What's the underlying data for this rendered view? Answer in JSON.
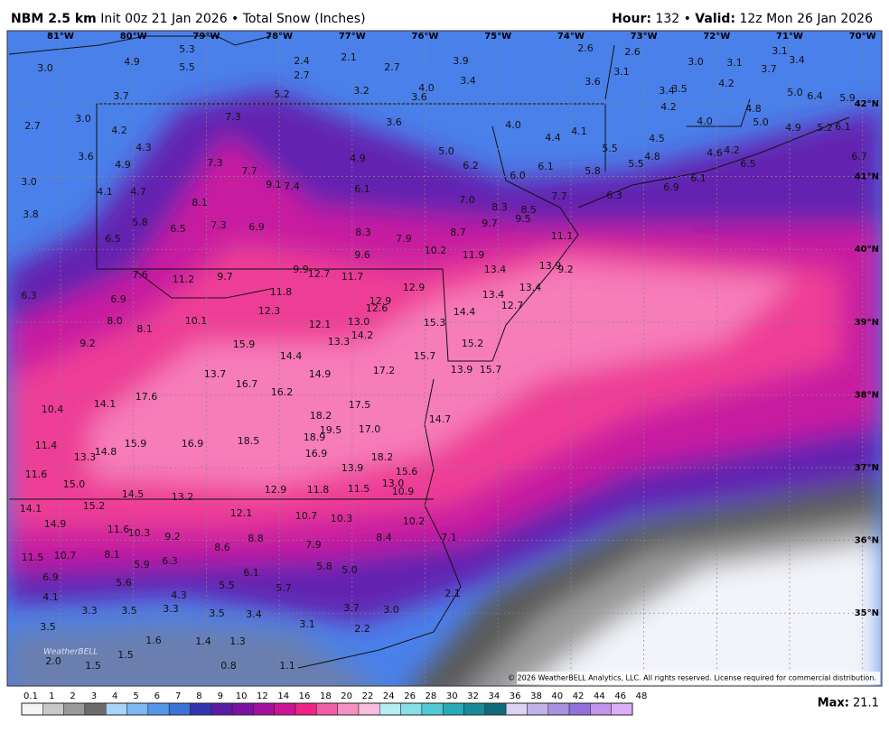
{
  "header": {
    "model": "NBM 2.5 km",
    "init": "Init 00z 21 Jan 2026 • Total Snow (Inches)",
    "hour_label": "Hour:",
    "hour": "132 •",
    "valid_label": "Valid:",
    "valid": "12z Mon 26 Jan 2026"
  },
  "map": {
    "lon_labels": [
      "81°W",
      "80°W",
      "79°W",
      "78°W",
      "77°W",
      "76°W",
      "75°W",
      "74°W",
      "73°W",
      "72°W",
      "71°W",
      "70°W"
    ],
    "lat_labels": [
      "42°N",
      "41°N",
      "40°N",
      "39°N",
      "38°N",
      "37°N",
      "36°N",
      "35°N"
    ],
    "point_labels": [
      "3.0",
      "4.9",
      "5.3",
      "5.5",
      "2.4",
      "2.1",
      "2.7",
      "2.7",
      "3.9",
      "2.6",
      "2.6",
      "3.1",
      "3.0",
      "3.1",
      "3.4",
      "3.7",
      "3.1",
      "3.4",
      "3.6",
      "4.2",
      "5.2",
      "3.2",
      "4.0",
      "3.6",
      "3.4",
      "3.5",
      "5.0",
      "6.4",
      "5.9",
      "3.7",
      "7.3",
      "3.6",
      "4.0",
      "4.2",
      "4.8",
      "3.0",
      "2.7",
      "4.2",
      "5.0",
      "4.0",
      "4.9",
      "5.2",
      "6.1",
      "4.1",
      "4.4",
      "4.5",
      "4.3",
      "5.0",
      "5.5",
      "4.6",
      "4.2",
      "3.6",
      "7.3",
      "4.9",
      "4.9",
      "7.7",
      "6.2",
      "4.8",
      "5.5",
      "6.5",
      "6.1",
      "6.0",
      "5.8",
      "6.7",
      "3.0",
      "9.1",
      "7.4",
      "6.1",
      "4.1",
      "4.7",
      "6.1",
      "6.9",
      "8.1",
      "7.0",
      "7.7",
      "6.3",
      "8.3",
      "8.5",
      "3.8",
      "5.8",
      "6.5",
      "7.3",
      "6.9",
      "9.7",
      "9.5",
      "8.3",
      "8.7",
      "7.9",
      "6.5",
      "11.1",
      "9.6",
      "10.2",
      "11.9",
      "13.4",
      "13.9",
      "9.2",
      "7.6",
      "11.2",
      "9.7",
      "9.9",
      "12.7",
      "11.7",
      "12.9",
      "11.8",
      "6.3",
      "6.9",
      "12.9",
      "12.6",
      "13.4",
      "13.4",
      "12.7",
      "12.3",
      "14.4",
      "8.0",
      "8.1",
      "10.1",
      "12.1",
      "13.0",
      "15.3",
      "14.2",
      "13.3",
      "9.2",
      "15.9",
      "15.2",
      "14.4",
      "15.7",
      "13.7",
      "14.9",
      "17.2",
      "13.9",
      "15.7",
      "16.7",
      "17.6",
      "16.2",
      "14.1",
      "10.4",
      "17.5",
      "18.2",
      "14.7",
      "19.5",
      "17.0",
      "18.9",
      "11.4",
      "15.9",
      "16.9",
      "18.5",
      "14.8",
      "13.3",
      "16.9",
      "18.2",
      "13.9",
      "11.6",
      "15.6",
      "15.0",
      "13.0",
      "10.9",
      "12.9",
      "11.8",
      "11.5",
      "14.5",
      "13.2",
      "14.1",
      "15.2",
      "12.1",
      "10.7",
      "10.3",
      "14.9",
      "10.2",
      "11.6",
      "10.3",
      "9.2",
      "8.8",
      "8.4",
      "7.1",
      "8.6",
      "7.9",
      "8.1",
      "11.5",
      "10.7",
      "5.9",
      "6.3",
      "5.8",
      "5.0",
      "6.1",
      "6.9",
      "5.6",
      "5.5",
      "5.7",
      "4.3",
      "4.1",
      "2.1",
      "3.3",
      "3.5",
      "3.3",
      "3.5",
      "3.4",
      "3.7",
      "3.0",
      "3.5",
      "3.1",
      "2.2",
      "1.6",
      "1.4",
      "1.3",
      "1.5",
      "2.0",
      "1.5",
      "0.8",
      "1.1"
    ],
    "watermark": "WeatherBELL",
    "copyright": "© 2026 WeatherBELL Analytics, LLC. All rights reserved. License required for commercial distribution."
  },
  "colorbar": {
    "ticks": [
      0.1,
      1,
      2,
      3,
      4,
      5,
      6,
      7,
      8,
      9,
      10,
      12,
      14,
      16,
      18,
      20,
      22,
      24,
      26,
      28,
      30,
      32,
      34,
      36,
      38,
      40,
      42,
      44,
      46,
      48
    ],
    "colors": [
      "#f4f4f4",
      "#c8c8c8",
      "#9a9a9a",
      "#6c6c6c",
      "#a8d4f8",
      "#7cb8f2",
      "#5498ea",
      "#3a72d8",
      "#3434b0",
      "#5a1ca4",
      "#7c10a2",
      "#a40fa0",
      "#cc1394",
      "#ee2486",
      "#f35ea6",
      "#f690c4",
      "#f9bcdc",
      "#b4eef2",
      "#86e0e6",
      "#50cad4",
      "#28aab8",
      "#1a8a9a",
      "#0f6a7a",
      "#dcd2f2",
      "#c2b2ea",
      "#aa92e2",
      "#9272da",
      "#c294ec",
      "#dcaef8"
    ],
    "max_label": "Max:",
    "max": 21.1
  }
}
